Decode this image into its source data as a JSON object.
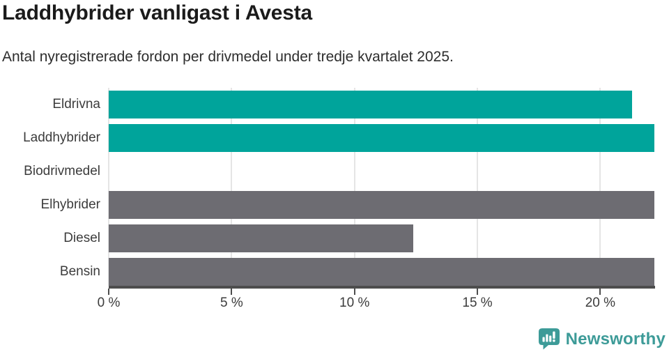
{
  "header": {
    "title": "Laddhybrider vanligast i Avesta",
    "subtitle": "Antal nyregistrerade fordon per drivmedel under tredje kvartalet 2025."
  },
  "footer": {
    "brand": "Newsworthy",
    "logo_icon": "speech-bubble-bar-chart-exclamation"
  },
  "colors": {
    "teal": "#00A49B",
    "gray": "#6D6C72",
    "grid": "#E5E5E5",
    "axis": "#4D4D4D",
    "title_text": "#1B1B1B",
    "body_text": "#2D2D2D",
    "label_text": "#3C3C3C",
    "brand": "#3D9B98",
    "background": "#FFFFFF"
  },
  "chart_data": {
    "type": "bar",
    "orientation": "horizontal",
    "title": "Laddhybrider vanligast i Avesta",
    "subtitle": "Antal nyregistrerade fordon per drivmedel under tredje kvartalet 2025.",
    "categories": [
      "Eldrivna",
      "Laddhybrider",
      "Biodrivmedel",
      "Elhybrider",
      "Diesel",
      "Bensin"
    ],
    "values": [
      21.3,
      22.2,
      0,
      22.2,
      12.4,
      22.2
    ],
    "unit": "%",
    "bar_colors": [
      "#00A49B",
      "#00A49B",
      "#00A49B",
      "#6D6C72",
      "#6D6C72",
      "#6D6C72"
    ],
    "xlim": [
      0,
      22.2
    ],
    "xticks": {
      "values": [
        0,
        5,
        10,
        15,
        20
      ],
      "labels": [
        "0 %",
        "5 %",
        "10 %",
        "15 %",
        "20 %"
      ]
    },
    "grid": "vertical-only",
    "legend": "none",
    "ylabel": "",
    "xlabel": ""
  }
}
